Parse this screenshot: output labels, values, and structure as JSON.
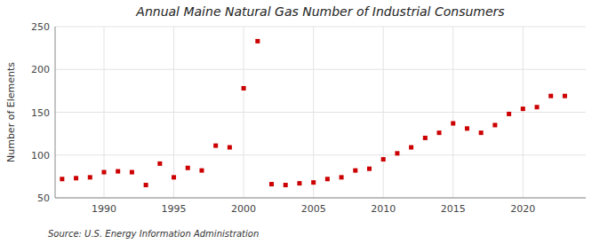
{
  "chart_data": {
    "type": "scatter",
    "title": "Annual Maine Natural Gas Number of Industrial Consumers",
    "ylabel": "Number of Elements",
    "source": "Source: U.S. Energy Information Administration",
    "x": [
      1987,
      1988,
      1989,
      1990,
      1991,
      1992,
      1993,
      1994,
      1995,
      1996,
      1997,
      1998,
      1999,
      2000,
      2001,
      2002,
      2003,
      2004,
      2005,
      2006,
      2007,
      2008,
      2009,
      2010,
      2011,
      2012,
      2013,
      2014,
      2015,
      2016,
      2017,
      2018,
      2019,
      2020,
      2021,
      2022,
      2023
    ],
    "values": [
      72,
      73,
      74,
      80,
      81,
      80,
      65,
      90,
      74,
      85,
      82,
      111,
      109,
      178,
      233,
      66,
      65,
      67,
      68,
      72,
      74,
      82,
      84,
      95,
      102,
      109,
      120,
      126,
      137,
      131,
      126,
      135,
      148,
      154,
      156,
      169,
      169
    ],
    "color": "#cc0000",
    "marker": "square",
    "xlim": [
      1986.5,
      2024.5
    ],
    "xticks": [
      1990,
      1995,
      2000,
      2005,
      2010,
      2015,
      2020
    ],
    "ylim": [
      50,
      250
    ],
    "yticks": [
      50,
      100,
      150,
      200,
      250
    ],
    "grid": true
  }
}
